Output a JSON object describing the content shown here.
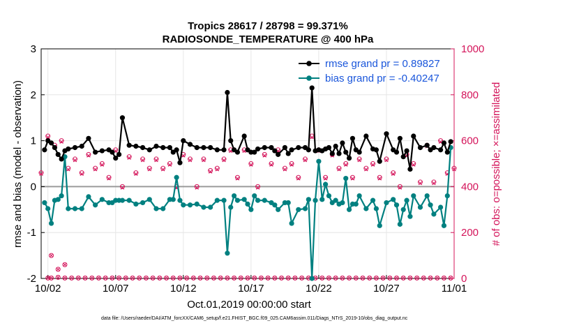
{
  "chart_data": {
    "type": "line",
    "title": "Tropics 28617 / 28798 = 99.371%",
    "subtitle": "RADIOSONDE_TEMPERATURE @ 400 hPa",
    "xlabel": "Oct.01,2019 00:00:00 start",
    "ylabel": "rmse and bias (model - observation)",
    "y2label": "# of obs: o=possible; ×=assimilated",
    "xlim": [
      1.5,
      32.0
    ],
    "ylim": [
      -2,
      3
    ],
    "y2lim": [
      0,
      1000
    ],
    "x_ticks": [
      {
        "x": 2,
        "label": "10/02"
      },
      {
        "x": 7,
        "label": "10/07"
      },
      {
        "x": 12,
        "label": "10/12"
      },
      {
        "x": 17,
        "label": "10/17"
      },
      {
        "x": 22,
        "label": "10/22"
      },
      {
        "x": 27,
        "label": "10/27"
      },
      {
        "x": 32,
        "label": "11/01"
      }
    ],
    "y_ticks": [
      "-2",
      "-1",
      "0",
      "1",
      "2",
      "3"
    ],
    "y2_ticks": [
      "0",
      "200",
      "400",
      "600",
      "800",
      "1000"
    ],
    "legend": [
      {
        "label": "rmse grand pr = 0.89827",
        "color": "#000000"
      },
      {
        "label": "bias grand pr = -0.40247",
        "color": "#008080"
      }
    ],
    "footer": "data file: /Users/raeder/DAI/ATM_forcXX/CAM6_setup/f.e21.FHIST_BGC.f09_025.CAM6assim.011/Diags_NTrS_2019-10/obs_diag_output.nc",
    "colors": {
      "rmse": "#000000",
      "bias": "#008080",
      "obs": "#d4145a",
      "zero": "#9a9a9a"
    },
    "rmse": {
      "x": [
        1.75,
        2.0,
        2.25,
        2.5,
        2.75,
        3.0,
        3.25,
        3.5,
        4.0,
        4.5,
        5.0,
        5.5,
        6.0,
        6.5,
        6.75,
        7.0,
        7.25,
        7.5,
        8.0,
        8.5,
        9.0,
        9.5,
        10.0,
        10.5,
        11.0,
        11.25,
        11.5,
        11.75,
        12.0,
        12.5,
        13.0,
        13.5,
        14.0,
        14.5,
        15.0,
        15.25,
        15.5,
        15.75,
        16.0,
        16.5,
        16.75,
        17.0,
        17.25,
        17.5,
        18.0,
        18.5,
        18.75,
        19.0,
        19.5,
        19.75,
        20.0,
        20.5,
        21.0,
        21.25,
        21.5,
        21.75,
        22.0,
        22.25,
        22.5,
        22.75,
        23.0,
        23.25,
        23.5,
        23.75,
        24.0,
        24.25,
        24.5,
        24.75,
        25.0,
        25.5,
        26.0,
        26.25,
        26.5,
        27.0,
        27.5,
        27.75,
        28.0,
        28.25,
        28.5,
        28.75,
        29.0,
        29.5,
        30.0,
        30.25,
        30.5,
        31.0,
        31.25,
        31.5,
        31.75
      ],
      "y": [
        0.8,
        1.0,
        0.95,
        0.85,
        0.7,
        0.6,
        0.78,
        0.82,
        0.85,
        0.88,
        1.05,
        0.75,
        0.78,
        0.8,
        0.75,
        0.62,
        0.7,
        1.5,
        0.9,
        0.88,
        0.85,
        0.8,
        0.88,
        0.85,
        0.85,
        0.75,
        0.8,
        0.52,
        1.0,
        0.92,
        0.85,
        0.85,
        0.85,
        0.8,
        0.8,
        2.05,
        1.0,
        0.8,
        0.75,
        1.1,
        0.8,
        0.75,
        0.75,
        0.82,
        0.85,
        0.85,
        0.78,
        0.7,
        0.85,
        0.72,
        0.8,
        0.85,
        0.85,
        0.8,
        2.15,
        0.78,
        0.8,
        0.78,
        0.82,
        0.85,
        0.72,
        0.88,
        0.72,
        0.95,
        0.75,
        0.62,
        1.05,
        0.8,
        0.75,
        1.1,
        0.82,
        0.8,
        0.55,
        1.15,
        0.8,
        0.75,
        1.05,
        0.65,
        0.78,
        0.38,
        1.1,
        0.85,
        0.9,
        0.8,
        0.85,
        0.8,
        0.95,
        0.75,
        0.98
      ]
    },
    "bias": {
      "x": [
        1.75,
        2.0,
        2.25,
        2.5,
        2.75,
        3.0,
        3.25,
        3.5,
        4.0,
        4.5,
        5.0,
        5.5,
        6.0,
        6.5,
        6.75,
        7.0,
        7.25,
        7.5,
        8.0,
        8.5,
        9.0,
        9.5,
        10.0,
        10.5,
        11.0,
        11.25,
        11.5,
        11.75,
        12.0,
        12.5,
        13.0,
        13.5,
        14.0,
        14.5,
        15.0,
        15.25,
        15.5,
        15.75,
        16.0,
        16.5,
        16.75,
        17.0,
        17.25,
        17.5,
        18.0,
        18.5,
        18.75,
        19.0,
        19.5,
        19.75,
        20.0,
        20.5,
        21.0,
        21.25,
        21.5,
        21.75,
        22.0,
        22.25,
        22.5,
        22.75,
        23.0,
        23.25,
        23.5,
        23.75,
        24.0,
        24.25,
        24.5,
        24.75,
        25.0,
        25.5,
        26.0,
        26.25,
        26.5,
        27.0,
        27.5,
        27.75,
        28.0,
        28.25,
        28.5,
        28.75,
        29.0,
        29.5,
        30.0,
        30.25,
        30.5,
        31.0,
        31.25,
        31.5,
        31.75
      ],
      "y": [
        -0.35,
        -0.48,
        -0.8,
        -0.3,
        -0.28,
        -0.2,
        0.65,
        -0.48,
        -0.48,
        -0.48,
        -0.22,
        -0.4,
        -0.28,
        -0.35,
        -0.35,
        -0.3,
        -0.3,
        -0.3,
        -0.3,
        -0.38,
        -0.35,
        -0.28,
        -0.48,
        -0.48,
        -0.28,
        -0.28,
        0.2,
        -0.3,
        -0.4,
        -0.4,
        -0.38,
        -0.45,
        -0.45,
        -0.3,
        -0.3,
        -1.45,
        -0.45,
        -0.2,
        -0.3,
        -0.28,
        -0.38,
        -0.5,
        -0.2,
        -0.3,
        -0.3,
        -0.35,
        -0.4,
        -0.5,
        -0.35,
        -0.35,
        -0.8,
        -0.5,
        -0.48,
        -0.28,
        -2.0,
        -0.3,
        0.55,
        -0.28,
        0.05,
        -0.2,
        -0.35,
        -0.3,
        -0.38,
        -0.35,
        0.18,
        -0.5,
        -0.38,
        -0.38,
        -0.2,
        -0.48,
        -0.3,
        -0.48,
        -0.85,
        -0.35,
        -0.28,
        -0.4,
        -0.82,
        -0.5,
        -0.3,
        -0.65,
        -0.2,
        -0.45,
        -0.2,
        -0.4,
        -0.6,
        -0.45,
        -0.85,
        -0.2,
        0.85
      ]
    },
    "obs_possible": {
      "x": [
        1.5,
        2.0,
        2.5,
        3.0,
        3.5,
        4.0,
        4.5,
        5.0,
        5.5,
        6.0,
        6.5,
        7.0,
        7.5,
        8.0,
        8.5,
        9.0,
        9.5,
        10.0,
        10.5,
        11.0,
        11.5,
        12.0,
        12.5,
        13.0,
        13.5,
        14.0,
        14.5,
        15.0,
        15.5,
        16.0,
        16.5,
        17.0,
        17.5,
        18.0,
        18.5,
        19.0,
        19.5,
        20.0,
        20.5,
        21.0,
        21.5,
        22.0,
        22.5,
        23.0,
        23.5,
        24.0,
        24.5,
        25.0,
        25.5,
        26.0,
        26.5,
        27.0,
        27.5,
        28.0,
        28.5,
        29.0,
        29.5,
        30.0,
        30.5,
        31.0,
        31.5,
        32.0
      ],
      "y": [
        460,
        620,
        580,
        600,
        480,
        520,
        460,
        540,
        480,
        500,
        440,
        560,
        400,
        530,
        460,
        520,
        480,
        520,
        480,
        500,
        400,
        540,
        520,
        400,
        520,
        470,
        480,
        520,
        560,
        440,
        560,
        500,
        400,
        540,
        500,
        560,
        480,
        500,
        440,
        520,
        620,
        560,
        440,
        540,
        480,
        500,
        440,
        520,
        480,
        500,
        440,
        520,
        460,
        400,
        540,
        500,
        420,
        580,
        420,
        600,
        460,
        480
      ]
    },
    "obs_assimilated": {
      "x": [
        1.5,
        2.0,
        2.5,
        3.0,
        3.5,
        4.0,
        4.5,
        5.0,
        5.5,
        6.0,
        6.5,
        7.0,
        7.5,
        8.0,
        8.5,
        9.0,
        9.5,
        10.0,
        10.5,
        11.0,
        11.5,
        12.0,
        12.5,
        13.0,
        13.5,
        14.0,
        14.5,
        15.0,
        15.5,
        16.0,
        16.5,
        17.0,
        17.5,
        18.0,
        18.5,
        19.0,
        19.5,
        20.0,
        20.5,
        21.0,
        21.5,
        22.0,
        22.5,
        23.0,
        23.5,
        24.0,
        24.5,
        25.0,
        25.5,
        26.0,
        26.5,
        27.0,
        27.5,
        28.0,
        28.5,
        29.0,
        29.5,
        30.0,
        30.5,
        31.0,
        31.5,
        32.0
      ],
      "y": [
        455,
        615,
        575,
        595,
        475,
        515,
        455,
        535,
        475,
        495,
        435,
        555,
        395,
        525,
        455,
        515,
        475,
        515,
        475,
        495,
        395,
        535,
        515,
        395,
        515,
        465,
        475,
        515,
        555,
        435,
        555,
        495,
        395,
        535,
        495,
        555,
        475,
        495,
        435,
        515,
        615,
        555,
        435,
        535,
        475,
        495,
        435,
        515,
        475,
        495,
        435,
        515,
        455,
        395,
        535,
        495,
        415,
        575,
        415,
        595,
        455,
        475
      ]
    },
    "obs_low": {
      "x": [
        2.0,
        2.25,
        2.75,
        3.25,
        3.75,
        4.25,
        4.75,
        5.25,
        5.75,
        6.25,
        6.75,
        7.25,
        7.75,
        8.25,
        8.75,
        9.25,
        9.75,
        10.25,
        10.75,
        11.25,
        11.75,
        12.25,
        12.75,
        13.25,
        13.75,
        14.25,
        14.75,
        15.25,
        15.75,
        16.25,
        16.75,
        17.25,
        17.75,
        18.25,
        18.75,
        19.25,
        19.75,
        20.25,
        20.75,
        21.25,
        21.75,
        22.25,
        22.75,
        23.25,
        23.75,
        24.25,
        24.75,
        25.25,
        25.75,
        26.25,
        26.75,
        27.25,
        27.75,
        28.25,
        28.75,
        29.25,
        29.75,
        30.25,
        30.75,
        31.25,
        31.75
      ],
      "y": [
        2,
        2,
        5,
        2,
        2,
        2,
        2,
        2,
        2,
        2,
        2,
        2,
        2,
        2,
        2,
        2,
        2,
        2,
        2,
        2,
        2,
        2,
        2,
        2,
        2,
        2,
        2,
        2,
        2,
        2,
        2,
        2,
        2,
        2,
        2,
        2,
        2,
        2,
        2,
        2,
        2,
        2,
        2,
        2,
        2,
        2,
        2,
        2,
        2,
        2,
        2,
        2,
        2,
        2,
        2,
        2,
        2,
        2,
        2,
        2,
        2
      ]
    },
    "obs_extra": {
      "x": [
        2.25,
        2.75,
        3.25
      ],
      "y": [
        100,
        40,
        60
      ]
    }
  }
}
